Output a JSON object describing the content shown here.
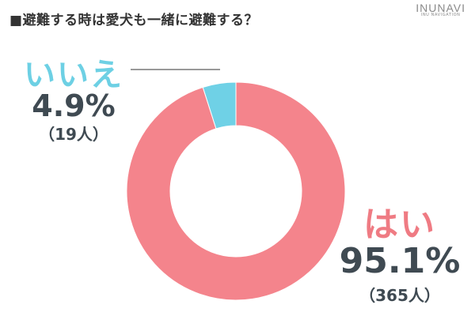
{
  "header": {
    "title": "■避難する時は愛犬も一緒に避難する？",
    "brand_name": "INUNAVI",
    "brand_sub": "INU NAVIGATION"
  },
  "chart_data": {
    "type": "pie",
    "donut": true,
    "title": "■避難する時は愛犬も一緒に避難する？",
    "slices": [
      {
        "label": "はい",
        "value": 95.1,
        "display": "95.1%",
        "count": "（365人）",
        "color": "#f4848c"
      },
      {
        "label": "いいえ",
        "value": 4.9,
        "display": "4.9%",
        "count": "（19人）",
        "color": "#6fd1e6"
      }
    ]
  }
}
